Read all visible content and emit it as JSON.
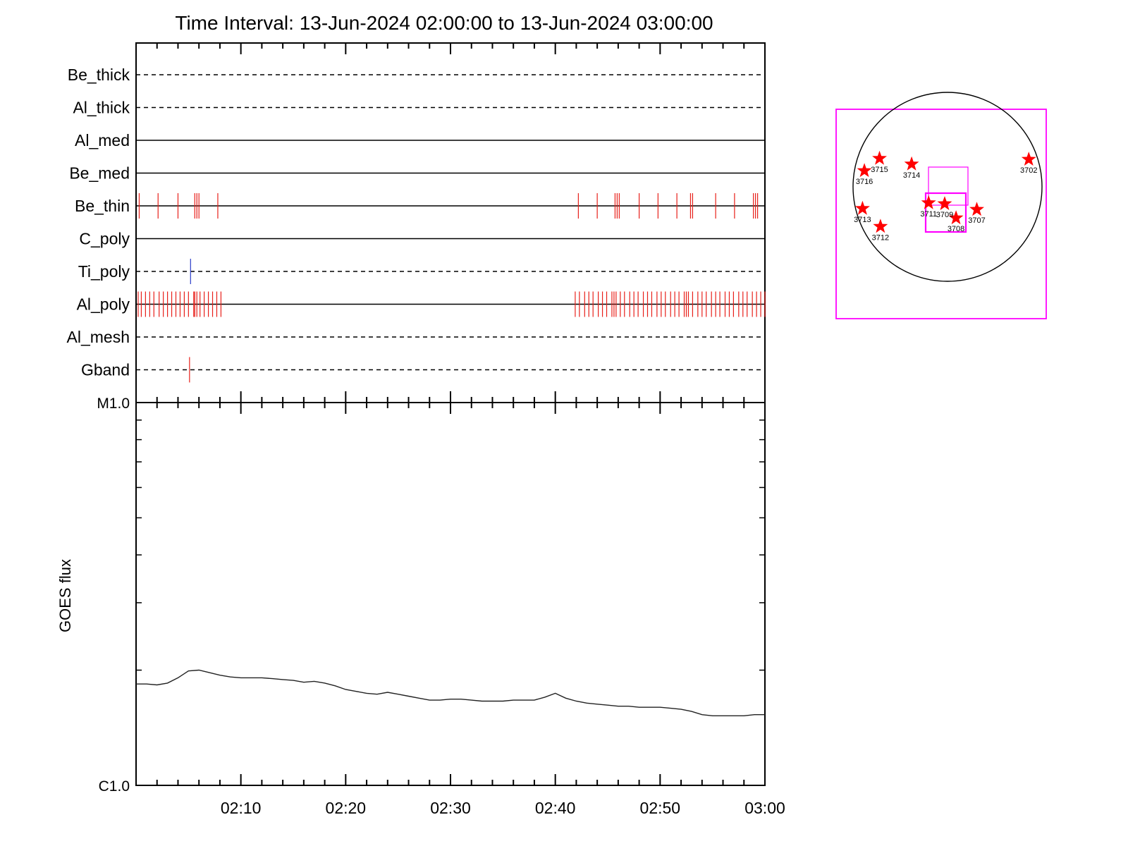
{
  "chart_data": [
    {
      "type": "event-timeline",
      "title": "Time Interval: 13-Jun-2024 02:00:00 to 13-Jun-2024 03:00:00",
      "x_range": [
        "02:00",
        "03:00"
      ],
      "channels": [
        {
          "name": "Be_thick",
          "line": "dashed",
          "events": []
        },
        {
          "name": "Al_thick",
          "line": "dashed",
          "events": []
        },
        {
          "name": "Al_med",
          "line": "solid",
          "events": []
        },
        {
          "name": "Be_med",
          "line": "solid",
          "events": []
        },
        {
          "name": "Be_thin",
          "line": "solid",
          "color": "#e8201a",
          "events": [
            "02:00.3",
            "02:02.1",
            "02:04.0",
            "02:05.6",
            "02:05.8",
            "02:06.0",
            "02:07.8",
            "02:42.2",
            "02:44.0",
            "02:45.7",
            "02:45.9",
            "02:46.1",
            "02:48.0",
            "02:49.8",
            "02:51.6",
            "02:52.9",
            "02:53.1",
            "02:55.3",
            "02:57.1",
            "02:58.9",
            "02:59.1",
            "02:59.3"
          ]
        },
        {
          "name": "C_poly",
          "line": "solid",
          "events": []
        },
        {
          "name": "Ti_poly",
          "line": "dashed",
          "color": "#2a3cc8",
          "events": [
            "02:05.2"
          ]
        },
        {
          "name": "Al_poly",
          "line": "solid",
          "color": "#e8201a",
          "events": [
            "02:00.2",
            "02:00.5",
            "02:00.9",
            "02:01.3",
            "02:01.7",
            "02:02.2",
            "02:02.6",
            "02:03.0",
            "02:03.4",
            "02:03.8",
            "02:04.2",
            "02:04.6",
            "02:05.0",
            "02:05.5",
            "02:05.6",
            "02:05.8",
            "02:06.1",
            "02:06.5",
            "02:06.9",
            "02:07.3",
            "02:07.7",
            "02:08.1",
            "02:41.9",
            "02:42.3",
            "02:42.8",
            "02:43.2",
            "02:43.6",
            "02:44.1",
            "02:44.5",
            "02:44.9",
            "02:45.4",
            "02:45.6",
            "02:45.8",
            "02:46.2",
            "02:46.6",
            "02:47.1",
            "02:47.5",
            "02:47.9",
            "02:48.4",
            "02:48.8",
            "02:49.2",
            "02:49.7",
            "02:50.1",
            "02:50.5",
            "02:51.0",
            "02:51.4",
            "02:51.8",
            "02:52.3",
            "02:52.5",
            "02:52.7",
            "02:53.1",
            "02:53.6",
            "02:54.0",
            "02:54.4",
            "02:54.9",
            "02:55.3",
            "02:55.7",
            "02:56.2",
            "02:56.6",
            "02:57.0",
            "02:57.5",
            "02:57.9",
            "02:58.3",
            "02:58.8",
            "02:59.2",
            "02:59.6",
            "03:00.0"
          ]
        },
        {
          "name": "Al_mesh",
          "line": "dashed",
          "events": []
        },
        {
          "name": "Gband",
          "line": "dashed",
          "color": "#e8201a",
          "events": [
            "02:05.1"
          ]
        }
      ]
    },
    {
      "type": "line",
      "ylabel": "GOES flux",
      "yscale": "log",
      "ylim": [
        "C1.0",
        "M1.0"
      ],
      "ytick_labels": [
        "M1.0",
        "C1.0"
      ],
      "xtick_labels": [
        "02:10",
        "02:20",
        "02:30",
        "02:40",
        "02:50",
        "03:00"
      ],
      "x_range": [
        "02:00",
        "03:00"
      ],
      "grid": false,
      "series": [
        {
          "x": [
            "02:00",
            "02:01",
            "02:02",
            "02:03",
            "02:04",
            "02:05",
            "02:06",
            "02:07",
            "02:08",
            "02:09",
            "02:10",
            "02:11",
            "02:12",
            "02:13",
            "02:14",
            "02:15",
            "02:16",
            "02:17",
            "02:18",
            "02:19",
            "02:20",
            "02:21",
            "02:22",
            "02:23",
            "02:24",
            "02:25",
            "02:26",
            "02:27",
            "02:28",
            "02:29",
            "02:30",
            "02:31",
            "02:32",
            "02:33",
            "02:34",
            "02:35",
            "02:36",
            "02:37",
            "02:38",
            "02:39",
            "02:40",
            "02:41",
            "02:42",
            "02:43",
            "02:44",
            "02:45",
            "02:46",
            "02:47",
            "02:48",
            "02:49",
            "02:50",
            "02:51",
            "02:52",
            "02:53",
            "02:54",
            "02:55",
            "02:56",
            "02:57",
            "02:58",
            "02:59",
            "03:00"
          ],
          "y": [
            "C1.84",
            "C1.84",
            "C1.83",
            "C1.85",
            "C1.91",
            "C1.99",
            "C2.00",
            "C1.97",
            "C1.94",
            "C1.92",
            "C1.91",
            "C1.91",
            "C1.91",
            "C1.90",
            "C1.89",
            "C1.88",
            "C1.86",
            "C1.87",
            "C1.85",
            "C1.82",
            "C1.78",
            "C1.76",
            "C1.74",
            "C1.73",
            "C1.75",
            "C1.73",
            "C1.71",
            "C1.69",
            "C1.67",
            "C1.67",
            "C1.68",
            "C1.68",
            "C1.67",
            "C1.66",
            "C1.66",
            "C1.66",
            "C1.67",
            "C1.67",
            "C1.67",
            "C1.70",
            "C1.74",
            "C1.69",
            "C1.66",
            "C1.64",
            "C1.63",
            "C1.62",
            "C1.61",
            "C1.61",
            "C1.60",
            "C1.60",
            "C1.60",
            "C1.59",
            "C1.58",
            "C1.56",
            "C1.53",
            "C1.52",
            "C1.52",
            "C1.52",
            "C1.52",
            "C1.53",
            "C1.53"
          ]
        }
      ]
    },
    {
      "type": "scatter",
      "annotation": "solar-disk-map",
      "points": [
        {
          "label": "3702",
          "x": 0.86,
          "y": 0.29
        },
        {
          "label": "3707",
          "x": 0.31,
          "y": -0.24
        },
        {
          "label": "3708",
          "x": 0.09,
          "y": -0.33
        },
        {
          "label": "3709",
          "x": -0.03,
          "y": -0.18
        },
        {
          "label": "3711",
          "x": -0.2,
          "y": -0.17
        },
        {
          "label": "3712",
          "x": -0.71,
          "y": -0.42
        },
        {
          "label": "3713",
          "x": -0.9,
          "y": -0.23
        },
        {
          "label": "3714",
          "x": -0.38,
          "y": 0.24
        },
        {
          "label": "3715",
          "x": -0.72,
          "y": 0.3
        },
        {
          "label": "3716",
          "x": -0.88,
          "y": 0.17
        }
      ],
      "colors": {
        "star": "#ff0000",
        "fov": "#ff00ff",
        "disk": "#000000"
      }
    }
  ]
}
